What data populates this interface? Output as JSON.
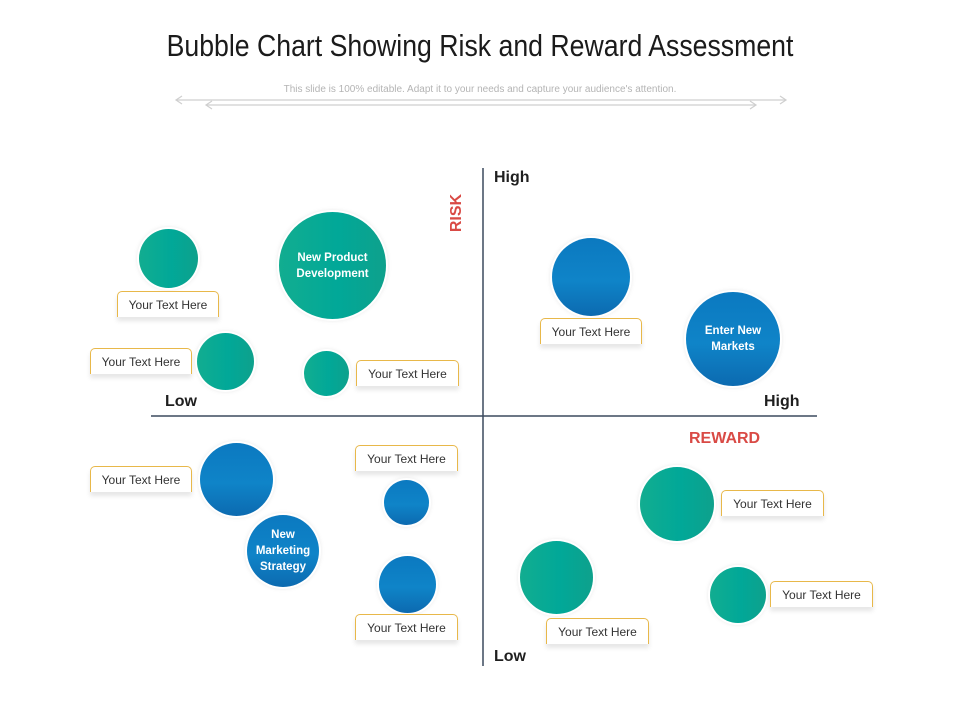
{
  "title": "Bubble Chart Showing Risk and Reward Assessment",
  "subtitle": "This slide is 100% editable. Adapt it to your needs and capture your audience's attention.",
  "axes": {
    "y_name": "RISK",
    "x_name": "REWARD",
    "y_high": "High",
    "y_low": "Low",
    "x_low": "Low",
    "x_high": "High"
  },
  "colors": {
    "teal": "#02A896",
    "blue": "#0B7BC1",
    "axis_name": "#D94A45",
    "label_border": "#E8B84A",
    "axis_line": "#3C4A5E"
  },
  "bubbles": [
    {
      "label": "",
      "color": "teal"
    },
    {
      "label": "New Product Development",
      "color": "teal"
    },
    {
      "label": "",
      "color": "teal"
    },
    {
      "label": "",
      "color": "teal"
    },
    {
      "label": "",
      "color": "blue"
    },
    {
      "label": "Enter New Markets",
      "color": "blue"
    },
    {
      "label": "",
      "color": "blue"
    },
    {
      "label": "New Marketing Strategy",
      "color": "blue"
    },
    {
      "label": "",
      "color": "blue"
    },
    {
      "label": "",
      "color": "blue"
    },
    {
      "label": "",
      "color": "teal"
    },
    {
      "label": "",
      "color": "teal"
    },
    {
      "label": "",
      "color": "teal"
    }
  ],
  "text_labels": [
    "Your Text Here",
    "Your Text Here",
    "Your Text Here",
    "Your Text Here",
    "Your Text Here",
    "Your Text Here",
    "Your Text Here",
    "Your Text Here",
    "Your Text Here",
    "Your Text Here"
  ]
}
